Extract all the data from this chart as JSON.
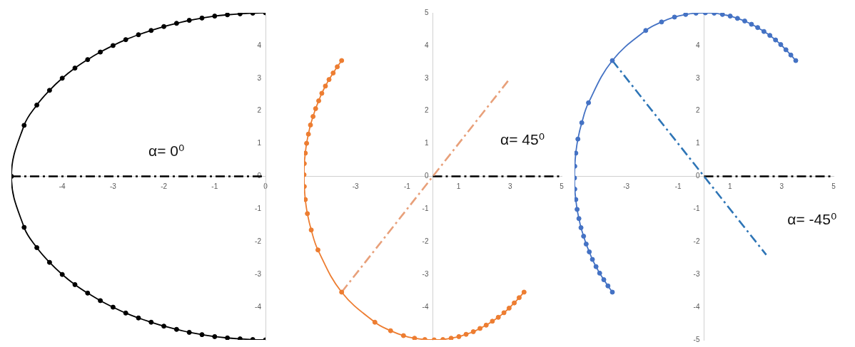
{
  "chart_data": [
    {
      "type": "line",
      "xlim": [
        -5,
        0
      ],
      "xticks": [
        -4,
        -3,
        -2,
        -1,
        0
      ],
      "ylim": [
        -5,
        5
      ],
      "yticks": [
        -4,
        -3,
        -2,
        -1,
        0,
        1,
        2,
        3,
        4
      ],
      "series": [
        {
          "color": "#000000",
          "marker": "circle",
          "line_style": "solid",
          "x": [
            0,
            -0.25,
            -0.5,
            -0.75,
            -1,
            -1.25,
            -1.5,
            -1.75,
            -2,
            -2.25,
            -2.5,
            -2.75,
            -3,
            -3.25,
            -3.5,
            -3.75,
            -4,
            -4.25,
            -4.5,
            -4.75,
            -5,
            -4.75,
            -4.5,
            -4.25,
            -4,
            -3.75,
            -3.5,
            -3.25,
            -3,
            -2.75,
            -2.5,
            -2.25,
            -2,
            -1.75,
            -1.5,
            -1.25,
            -1,
            -0.75,
            -0.5,
            -0.25,
            0
          ],
          "values": [
            5,
            4.99,
            4.97,
            4.94,
            4.9,
            4.84,
            4.77,
            4.68,
            4.58,
            4.46,
            4.33,
            4.18,
            4,
            3.8,
            3.57,
            3.31,
            3,
            2.63,
            2.18,
            1.56,
            0,
            -1.56,
            -2.18,
            -2.63,
            -3,
            -3.31,
            -3.57,
            -3.8,
            -4,
            -4.18,
            -4.33,
            -4.46,
            -4.58,
            -4.68,
            -4.77,
            -4.84,
            -4.9,
            -4.94,
            -4.97,
            -4.99,
            -5
          ]
        },
        {
          "color": "#000000",
          "marker": "none",
          "line_style": "dashed",
          "x": [
            -5,
            0
          ],
          "values": [
            0,
            0
          ]
        }
      ],
      "annotations": [
        "α= 0⁰"
      ]
    },
    {
      "type": "line",
      "xlim": [
        -5,
        5
      ],
      "xticks": [
        -3,
        -1,
        1,
        3,
        5
      ],
      "ylim": [
        -5,
        5
      ],
      "yticks": [
        -4,
        -3,
        -2,
        -1,
        0,
        1,
        2,
        3,
        4,
        5
      ],
      "series": [
        {
          "color": "#ed7d31",
          "marker": "circle",
          "line_style": "solid",
          "x": [
            -3.54,
            -3.71,
            -3.87,
            -4.03,
            -4.17,
            -4.31,
            -4.43,
            -4.55,
            -4.65,
            -4.75,
            -4.83,
            -4.9,
            -4.95,
            -4.99,
            -5,
            -4.99,
            -4.95,
            -4.87,
            -4.72,
            -4.46,
            -3.54,
            -2.25,
            -1.64,
            -1.14,
            -0.71,
            -0.31,
            0.05,
            0.39,
            0.71,
            1.01,
            1.29,
            1.57,
            1.83,
            2.07,
            2.31,
            2.54,
            2.76,
            2.96,
            3.16,
            3.35,
            3.54
          ],
          "values": [
            3.54,
            3.35,
            3.16,
            2.96,
            2.76,
            2.54,
            2.31,
            2.07,
            1.83,
            1.57,
            1.29,
            1.01,
            0.71,
            0.39,
            0.05,
            -0.31,
            -0.71,
            -1.14,
            -1.64,
            -2.25,
            -3.54,
            -4.46,
            -4.72,
            -4.87,
            -4.95,
            -4.99,
            -5,
            -4.99,
            -4.95,
            -4.9,
            -4.83,
            -4.75,
            -4.65,
            -4.55,
            -4.43,
            -4.31,
            -4.17,
            -4.03,
            -3.87,
            -3.71,
            -3.54
          ]
        },
        {
          "color": "#e8a07a",
          "marker": "none",
          "line_style": "dashed",
          "x": [
            -3.54,
            3
          ],
          "values": [
            -3.54,
            3
          ]
        },
        {
          "color": "#000000",
          "marker": "none",
          "line_style": "dashed",
          "x": [
            0,
            5
          ],
          "values": [
            0,
            0
          ]
        }
      ],
      "annotations": [
        "α= 45⁰"
      ]
    },
    {
      "type": "line",
      "xlim": [
        -5,
        5
      ],
      "xticks": [
        -3,
        -1,
        1,
        3,
        5
      ],
      "ylim": [
        -5,
        5
      ],
      "yticks": [
        -5,
        -4,
        -3,
        -2,
        -1,
        0,
        1,
        2,
        3,
        4
      ],
      "series": [
        {
          "color": "#4472c4",
          "marker": "circle",
          "line_style": "solid",
          "x": [
            3.54,
            3.35,
            3.16,
            2.96,
            2.76,
            2.54,
            2.31,
            2.07,
            1.83,
            1.57,
            1.29,
            1.01,
            0.71,
            0.39,
            0.05,
            -0.31,
            -0.71,
            -1.14,
            -1.64,
            -2.25,
            -3.54,
            -4.46,
            -4.72,
            -4.87,
            -4.95,
            -4.99,
            -5,
            -4.99,
            -4.95,
            -4.9,
            -4.83,
            -4.75,
            -4.65,
            -4.55,
            -4.43,
            -4.31,
            -4.17,
            -4.03,
            -3.87,
            -3.71,
            -3.54
          ],
          "values": [
            3.54,
            3.71,
            3.87,
            4.03,
            4.17,
            4.31,
            4.43,
            4.55,
            4.65,
            4.75,
            4.83,
            4.9,
            4.95,
            4.99,
            5,
            4.99,
            4.95,
            4.87,
            4.72,
            4.46,
            3.54,
            2.25,
            1.64,
            1.14,
            0.71,
            0.31,
            -0.05,
            -0.39,
            -0.71,
            -1.01,
            -1.29,
            -1.57,
            -1.83,
            -2.07,
            -2.31,
            -2.54,
            -2.76,
            -2.96,
            -3.16,
            -3.35,
            -3.54
          ]
        },
        {
          "color": "#2e75b6",
          "marker": "none",
          "line_style": "dashed",
          "x": [
            -3.54,
            2.4
          ],
          "values": [
            3.54,
            -2.4
          ]
        },
        {
          "color": "#000000",
          "marker": "none",
          "line_style": "dashed",
          "x": [
            0,
            5
          ],
          "values": [
            0,
            0
          ]
        }
      ],
      "annotations": [
        "α= -45⁰"
      ]
    }
  ]
}
